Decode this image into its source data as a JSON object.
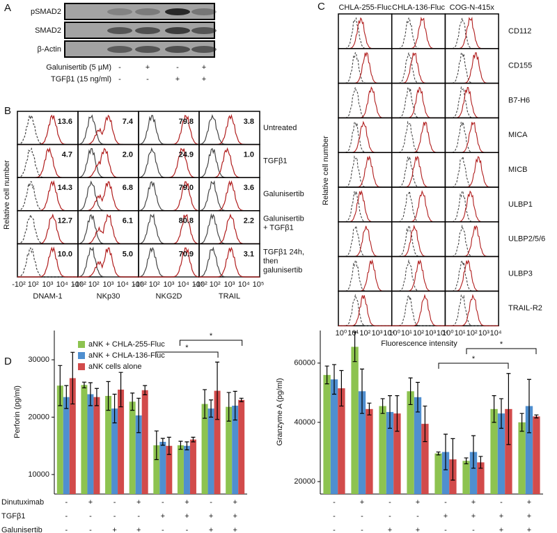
{
  "panels": {
    "a": "A",
    "b": "B",
    "c": "C",
    "d": "D"
  },
  "blot": {
    "rows": [
      "pSMAD2",
      "SMAD2",
      "β-Actin"
    ],
    "conditions": [
      {
        "name": "Galunisertib (5 µM)",
        "signs": [
          "-",
          "+",
          "-",
          "+"
        ]
      },
      {
        "name": "TGFβ1 (15 ng/ml)",
        "signs": [
          "-",
          "-",
          "+",
          "+"
        ]
      }
    ]
  },
  "receptors": {
    "y_title": "Relative cell number",
    "columns": [
      "DNAM-1",
      "NKp30",
      "NKG2D",
      "TRAIL"
    ],
    "rows": [
      [
        "Untreated"
      ],
      [
        "TGFβ1"
      ],
      [
        "Galunisertib"
      ],
      [
        "Galunisertib",
        "+ TGFβ1"
      ],
      [
        "TGFβ1 24h,",
        "then",
        "galunisertib"
      ]
    ],
    "percentages": [
      [
        "13.6",
        "7.4",
        "79.8",
        "3.8"
      ],
      [
        "4.7",
        "2.0",
        "24.9",
        "1.0"
      ],
      [
        "14.3",
        "6.8",
        "79.0",
        "3.6"
      ],
      [
        "12.7",
        "6.1",
        "80.8",
        "2.2"
      ],
      [
        "10.0",
        "5.0",
        "70.9",
        "3.1"
      ]
    ],
    "x_ticks": [
      "-10²",
      "10²",
      "10³",
      "10⁴",
      "10⁵"
    ]
  },
  "ligands": {
    "columns": [
      "CHLA-255-Fluc",
      "CHLA-136-Fluc",
      "COG-N-415x"
    ],
    "rows": [
      "CD112",
      "CD155",
      "B7-H6",
      "MICA",
      "MICB",
      "ULBP1",
      "ULBP2/5/6",
      "ULBP3",
      "TRAIL-R2"
    ],
    "x_ticks": [
      "10⁰",
      "10¹",
      "10²",
      "10³",
      "10⁴"
    ],
    "x_title": "Fluorescence intensity",
    "y_title": "Relative cell number"
  },
  "conditions": [
    {
      "name": "Dinutuximab",
      "signs": [
        "-",
        "+",
        "-",
        "+",
        "-",
        "+",
        "-",
        "+"
      ]
    },
    {
      "name": "TGFβ1",
      "signs": [
        "-",
        "-",
        "-",
        "-",
        "+",
        "+",
        "+",
        "+"
      ]
    },
    {
      "name": "Galunisertib",
      "signs": [
        "-",
        "-",
        "+",
        "+",
        "-",
        "-",
        "+",
        "+"
      ]
    }
  ],
  "chart_data": [
    {
      "type": "bar",
      "y_title": "Perforin (pg/ml)",
      "legend": true,
      "categories": [
        null,
        null,
        null,
        null,
        null,
        null,
        null,
        null
      ],
      "ylim": [
        6600,
        35100
      ],
      "yticks": [
        10000,
        20000,
        30000
      ],
      "annotations": [
        "*",
        "*"
      ],
      "series": [
        {
          "name": "aNK + CHLA-255-Fluc",
          "color": "#8dc350",
          "values": [
            25500,
            25600,
            23700,
            22700,
            15100,
            15100,
            22300,
            21800
          ],
          "errors": [
            3500,
            500,
            2500,
            1500,
            2500,
            700,
            2500,
            2500
          ]
        },
        {
          "name": "aNK + CHLA-136-Fluc",
          "color": "#4f8fd0",
          "values": [
            23500,
            24000,
            21500,
            20300,
            15700,
            15000,
            21500,
            22000
          ],
          "errors": [
            2000,
            2000,
            2500,
            3000,
            600,
            700,
            1500,
            2500
          ]
        },
        {
          "name": "aNK cells alone",
          "color": "#d24b4b",
          "values": [
            26800,
            23500,
            24800,
            24700,
            15000,
            16100,
            24600,
            23000
          ],
          "errors": [
            4500,
            1500,
            3000,
            800,
            1500,
            400,
            5000,
            300
          ]
        }
      ]
    },
    {
      "type": "bar",
      "y_title": "Granzyme A (pg/ml)",
      "legend": false,
      "categories": [
        null,
        null,
        null,
        null,
        null,
        null,
        null,
        null
      ],
      "ylim": [
        15800,
        71000
      ],
      "yticks": [
        20000,
        40000,
        60000
      ],
      "annotations": [
        "*",
        "*"
      ],
      "series": [
        {
          "name": "aNK + CHLA-255-Fluc",
          "color": "#8dc350",
          "values": [
            56000,
            65500,
            45500,
            50500,
            29500,
            27000,
            44500,
            40000
          ],
          "errors": [
            3000,
            5000,
            2500,
            4500,
            500,
            1000,
            4500,
            3000
          ]
        },
        {
          "name": "aNK + CHLA-136-Fluc",
          "color": "#4f8fd0",
          "values": [
            54500,
            50500,
            43500,
            48500,
            30000,
            30000,
            43000,
            45500
          ],
          "errors": [
            5000,
            7500,
            5500,
            5000,
            6000,
            5500,
            5000,
            9000
          ]
        },
        {
          "name": "aNK cells alone",
          "color": "#d24b4b",
          "values": [
            51500,
            44500,
            43000,
            39500,
            27500,
            26500,
            44500,
            42000
          ],
          "errors": [
            6000,
            2000,
            6000,
            6000,
            7000,
            2000,
            12000,
            500
          ]
        }
      ]
    }
  ]
}
